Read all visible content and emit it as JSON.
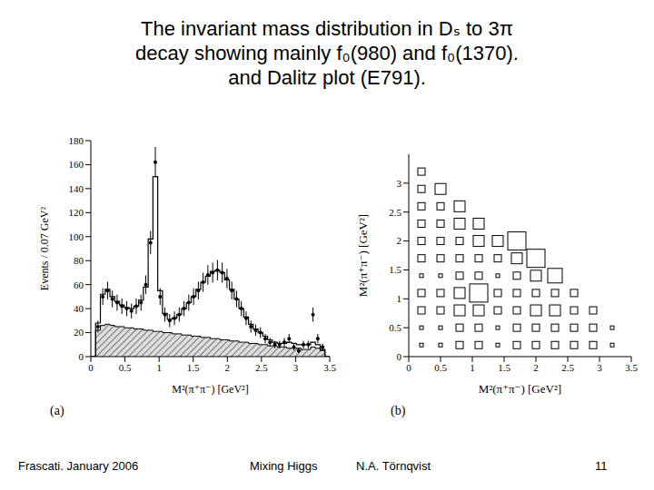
{
  "title": [
    "The invariant mass distribution in Dₛ to 3π",
    "decay showing mainly  f₀(980) and  f₀(1370).",
    "and Dalitz plot (E791)."
  ],
  "footer": {
    "left": "Frascati.  January 2006",
    "center": "Mixing Higgs",
    "author": "N.A. Törnqvist",
    "page": "11"
  },
  "chart_data": [
    {
      "type": "histogram",
      "panel_label": "(a)",
      "x_label": "M²(π⁺π⁻) [GeV²]",
      "y_label": "Events / 0.07 GeV²",
      "xlim": [
        0,
        3.5
      ],
      "xticks": [
        0,
        0.5,
        1,
        1.5,
        2,
        2.5,
        3,
        3.5
      ],
      "ylim": [
        0,
        180
      ],
      "yticks": [
        0,
        20,
        40,
        60,
        80,
        100,
        120,
        140,
        160,
        180
      ],
      "bins": [
        0,
        0.07,
        0.14,
        0.21,
        0.28,
        0.35,
        0.42,
        0.49,
        0.56,
        0.63,
        0.7,
        0.77,
        0.84,
        0.91,
        0.98,
        1.05,
        1.12,
        1.19,
        1.26,
        1.33,
        1.4,
        1.47,
        1.54,
        1.61,
        1.68,
        1.75,
        1.82,
        1.89,
        1.96,
        2.03,
        2.1,
        2.17,
        2.24,
        2.31,
        2.38,
        2.45,
        2.52,
        2.59,
        2.66,
        2.73,
        2.8,
        2.87,
        2.94,
        3.01,
        3.08,
        3.15,
        3.22,
        3.29,
        3.36,
        3.43,
        3.5
      ],
      "values": [
        null,
        25,
        50,
        55,
        48,
        45,
        42,
        40,
        38,
        42,
        45,
        60,
        95,
        162,
        50,
        35,
        30,
        32,
        35,
        40,
        45,
        50,
        55,
        62,
        68,
        70,
        72,
        70,
        65,
        55,
        48,
        40,
        32,
        25,
        22,
        20,
        15,
        12,
        10,
        10,
        12,
        15,
        8,
        5,
        10,
        10,
        35,
        15,
        8,
        null
      ],
      "errors": [
        null,
        5,
        7,
        7.4,
        7,
        6.7,
        6.5,
        6.3,
        6.2,
        6.5,
        6.7,
        7.7,
        9.7,
        12.7,
        7,
        5.9,
        5.5,
        5.7,
        5.9,
        6.3,
        6.7,
        7,
        7.4,
        7.9,
        8.2,
        8.4,
        8.5,
        8.4,
        8.1,
        7.4,
        6.9,
        6.3,
        5.7,
        5,
        4.7,
        4.5,
        3.9,
        3.5,
        3.2,
        3.2,
        3.5,
        3.9,
        2.8,
        2.2,
        3.2,
        3.2,
        5.9,
        3.9,
        2.8,
        null
      ],
      "fit": [
        0,
        28,
        52,
        56,
        50,
        46,
        43,
        41,
        40,
        42,
        47,
        58,
        98,
        150,
        55,
        36,
        31,
        32,
        35,
        40,
        45,
        50,
        56,
        62,
        67,
        71,
        72,
        70,
        64,
        56,
        48,
        40,
        33,
        27,
        23,
        20,
        17,
        14,
        12,
        11,
        11,
        12,
        11,
        10,
        10,
        10,
        12,
        10,
        6,
        0
      ],
      "background": [
        0,
        22,
        26,
        27,
        26,
        25,
        25,
        24,
        24,
        23,
        23,
        22,
        22,
        21,
        21,
        20,
        20,
        19,
        19,
        18,
        18,
        17,
        17,
        16,
        16,
        15,
        15,
        14,
        14,
        13,
        13,
        12,
        12,
        11,
        11,
        10,
        10,
        9,
        9,
        8,
        8,
        7,
        7,
        7,
        6,
        6,
        8,
        7,
        5,
        0
      ]
    },
    {
      "type": "scatter",
      "panel_label": "(b)",
      "x_label": "M²(π⁺π⁻) [GeV²]",
      "y_label": "M²(π⁺π⁻) [GeV²]",
      "marker": "square",
      "xlim": [
        0,
        3.5
      ],
      "xticks": [
        0,
        0.5,
        1,
        1.5,
        2,
        2.5,
        3,
        3.5
      ],
      "ylim": [
        0,
        3.5
      ],
      "yticks": [
        0,
        0.5,
        1,
        1.5,
        2,
        2.5,
        3
      ],
      "x": [
        0.2,
        0.2,
        0.2,
        0.2,
        0.2,
        0.2,
        0.2,
        0.2,
        0.2,
        0.2,
        0.2,
        0.5,
        0.5,
        0.5,
        0.5,
        0.5,
        0.5,
        0.5,
        0.5,
        0.5,
        0.5,
        0.8,
        0.8,
        0.8,
        0.8,
        0.8,
        0.8,
        0.8,
        0.8,
        0.8,
        1.1,
        1.1,
        1.1,
        1.1,
        1.1,
        1.1,
        1.1,
        1.1,
        1.4,
        1.4,
        1.4,
        1.4,
        1.4,
        1.4,
        1.4,
        1.7,
        1.7,
        1.7,
        1.7,
        1.7,
        1.7,
        1.7,
        2.0,
        2.0,
        2.0,
        2.0,
        2.0,
        2.0,
        2.3,
        2.3,
        2.3,
        2.3,
        2.3,
        2.6,
        2.6,
        2.6,
        2.6,
        2.9,
        2.9,
        2.9,
        3.2,
        3.2
      ],
      "y": [
        0.2,
        0.5,
        0.8,
        1.1,
        1.4,
        1.7,
        2.0,
        2.3,
        2.6,
        2.9,
        3.2,
        0.2,
        0.5,
        0.8,
        1.1,
        1.4,
        1.7,
        2.0,
        2.3,
        2.6,
        2.9,
        0.2,
        0.5,
        0.8,
        1.1,
        1.4,
        1.7,
        2.0,
        2.3,
        2.6,
        0.2,
        0.5,
        0.8,
        1.1,
        1.4,
        1.7,
        2.0,
        2.3,
        0.2,
        0.5,
        0.8,
        1.1,
        1.4,
        1.7,
        2.0,
        0.2,
        0.5,
        0.8,
        1.1,
        1.4,
        1.7,
        2.0,
        0.2,
        0.5,
        0.8,
        1.1,
        1.4,
        1.7,
        0.2,
        0.5,
        0.8,
        1.1,
        1.4,
        0.2,
        0.5,
        0.8,
        1.1,
        0.2,
        0.5,
        0.8,
        0.2,
        0.5
      ],
      "sizes": [
        1,
        1,
        2,
        2,
        1,
        2,
        2,
        2,
        2,
        2,
        2,
        1,
        1,
        2,
        2,
        1,
        2,
        2,
        2,
        2,
        3,
        2,
        2,
        3,
        3,
        2,
        2,
        2,
        3,
        3,
        2,
        2,
        3,
        5,
        2,
        2,
        3,
        3,
        1,
        1,
        2,
        2,
        1,
        2,
        3,
        2,
        2,
        2,
        2,
        2,
        3,
        5,
        2,
        2,
        3,
        2,
        3,
        5,
        2,
        2,
        3,
        2,
        4,
        2,
        2,
        2,
        2,
        2,
        2,
        2,
        1,
        1
      ]
    }
  ]
}
